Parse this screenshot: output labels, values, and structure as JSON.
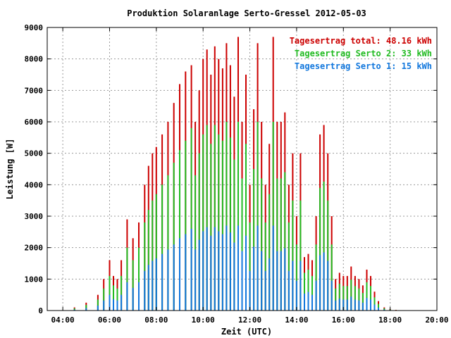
{
  "chart_data": {
    "type": "bar",
    "title": "Produktion Solaranlage Serto-Gressel 2012-05-03",
    "xlabel": "Zeit (UTC)",
    "ylabel": "Leistung [W]",
    "xlim": [
      "03:20",
      "20:00"
    ],
    "ylim": [
      0,
      9000
    ],
    "x_ticks": [
      "04:00",
      "06:00",
      "08:00",
      "10:00",
      "12:00",
      "14:00",
      "16:00",
      "18:00",
      "20:00"
    ],
    "y_ticks": [
      "0",
      "1000",
      "2000",
      "3000",
      "4000",
      "5000",
      "6000",
      "7000",
      "8000",
      "9000"
    ],
    "grid": true,
    "legend_position": "top-right",
    "colors": {
      "total": "#cc0000",
      "serto2": "#22bb22",
      "serto1": "#1177dd"
    },
    "legend": [
      {
        "key": "total",
        "label": "Tagesertrag total: 48.16 kWh"
      },
      {
        "key": "serto2",
        "label": "Tagesertrag Serto 2: 33 kWh"
      },
      {
        "key": "serto1",
        "label": "Tagesertrag Serto 1: 15 kWh"
      }
    ],
    "series": [
      {
        "key": "total",
        "x": [
          "04:30",
          "05:00",
          "05:30",
          "05:45",
          "06:00",
          "06:10",
          "06:20",
          "06:30",
          "06:45",
          "07:00",
          "07:15",
          "07:30",
          "07:40",
          "07:50",
          "08:00",
          "08:15",
          "08:30",
          "08:45",
          "09:00",
          "09:15",
          "09:30",
          "09:40",
          "09:50",
          "10:00",
          "10:10",
          "10:20",
          "10:30",
          "10:40",
          "10:50",
          "11:00",
          "11:10",
          "11:20",
          "11:30",
          "11:40",
          "11:50",
          "12:00",
          "12:10",
          "12:20",
          "12:30",
          "12:40",
          "12:50",
          "13:00",
          "13:10",
          "13:20",
          "13:30",
          "13:40",
          "13:50",
          "14:00",
          "14:10",
          "14:20",
          "14:30",
          "14:40",
          "14:50",
          "15:00",
          "15:10",
          "15:20",
          "15:30",
          "15:40",
          "15:50",
          "16:00",
          "16:10",
          "16:20",
          "16:30",
          "16:40",
          "16:50",
          "17:00",
          "17:10",
          "17:20",
          "17:30",
          "17:45",
          "18:00",
          "18:15",
          "18:30"
        ],
        "values": [
          100,
          250,
          500,
          1000,
          1600,
          1100,
          1000,
          1600,
          2900,
          2300,
          2800,
          4000,
          4600,
          5000,
          5200,
          5600,
          6000,
          6600,
          7200,
          7600,
          7800,
          6000,
          7000,
          8000,
          8300,
          7500,
          8400,
          8000,
          7700,
          8500,
          7800,
          6800,
          8700,
          6000,
          7500,
          4000,
          6400,
          8500,
          6000,
          4000,
          5300,
          8700,
          6000,
          6000,
          6300,
          4000,
          5000,
          3000,
          5000,
          1700,
          1800,
          1600,
          3000,
          5600,
          5900,
          5000,
          3000,
          1000,
          1200,
          1100,
          1100,
          1400,
          1100,
          1000,
          800,
          1300,
          1100,
          600,
          300,
          100,
          50,
          20,
          10
        ]
      },
      {
        "key": "serto2",
        "x": [
          "04:30",
          "05:00",
          "05:30",
          "05:45",
          "06:00",
          "06:10",
          "06:20",
          "06:30",
          "06:45",
          "07:00",
          "07:15",
          "07:30",
          "07:40",
          "07:50",
          "08:00",
          "08:15",
          "08:30",
          "08:45",
          "09:00",
          "09:15",
          "09:30",
          "09:40",
          "09:50",
          "10:00",
          "10:10",
          "10:20",
          "10:30",
          "10:40",
          "10:50",
          "11:00",
          "11:10",
          "11:20",
          "11:30",
          "11:40",
          "11:50",
          "12:00",
          "12:10",
          "12:20",
          "12:30",
          "12:40",
          "12:50",
          "13:00",
          "13:10",
          "13:20",
          "13:30",
          "13:40",
          "13:50",
          "14:00",
          "14:10",
          "14:20",
          "14:30",
          "14:40",
          "14:50",
          "15:00",
          "15:10",
          "15:20",
          "15:30",
          "15:40",
          "15:50",
          "16:00",
          "16:10",
          "16:20",
          "16:30",
          "16:40",
          "16:50",
          "17:00",
          "17:10",
          "17:20",
          "17:30",
          "17:45",
          "18:00",
          "18:15",
          "18:30"
        ],
        "values": [
          70,
          180,
          350,
          700,
          1100,
          800,
          700,
          1100,
          2000,
          1600,
          2000,
          2800,
          3200,
          3500,
          3700,
          4000,
          4300,
          4700,
          5100,
          5400,
          5800,
          4300,
          5000,
          5600,
          5900,
          5300,
          5900,
          5600,
          5400,
          6000,
          5500,
          4800,
          6000,
          4200,
          5300,
          2800,
          4500,
          6000,
          4200,
          2800,
          3700,
          6000,
          4200,
          4200,
          4400,
          2800,
          3500,
          2100,
          3500,
          1200,
          1300,
          1100,
          2100,
          3900,
          4100,
          3500,
          2100,
          700,
          850,
          780,
          780,
          980,
          780,
          700,
          560,
          900,
          780,
          420,
          210,
          70,
          35,
          14,
          7
        ]
      },
      {
        "key": "serto1",
        "x": [
          "04:30",
          "05:00",
          "05:30",
          "05:45",
          "06:00",
          "06:10",
          "06:20",
          "06:30",
          "06:45",
          "07:00",
          "07:15",
          "07:30",
          "07:40",
          "07:50",
          "08:00",
          "08:15",
          "08:30",
          "08:45",
          "09:00",
          "09:15",
          "09:30",
          "09:40",
          "09:50",
          "10:00",
          "10:10",
          "10:20",
          "10:30",
          "10:40",
          "10:50",
          "11:00",
          "11:10",
          "11:20",
          "11:30",
          "11:40",
          "11:50",
          "12:00",
          "12:10",
          "12:20",
          "12:30",
          "12:40",
          "12:50",
          "13:00",
          "13:10",
          "13:20",
          "13:30",
          "13:40",
          "13:50",
          "14:00",
          "14:10",
          "14:20",
          "14:30",
          "14:40",
          "14:50",
          "15:00",
          "15:10",
          "15:20",
          "15:30",
          "15:40",
          "15:50",
          "16:00",
          "16:10",
          "16:20",
          "16:30",
          "16:40",
          "16:50",
          "17:00",
          "17:10",
          "17:20",
          "17:30",
          "17:45",
          "18:00",
          "18:15",
          "18:30"
        ],
        "values": [
          30,
          80,
          160,
          320,
          500,
          360,
          320,
          500,
          900,
          720,
          900,
          1260,
          1450,
          1580,
          1660,
          1800,
          1940,
          2100,
          2300,
          2430,
          2600,
          1940,
          2250,
          2520,
          2650,
          2380,
          2650,
          2520,
          2430,
          2700,
          2480,
          2160,
          2700,
          1890,
          2380,
          1260,
          2030,
          2700,
          1890,
          1260,
          1660,
          2700,
          1890,
          1890,
          1980,
          1260,
          1580,
          950,
          1580,
          540,
          590,
          500,
          950,
          1760,
          1850,
          1580,
          950,
          320,
          380,
          350,
          350,
          440,
          350,
          320,
          250,
          400,
          350,
          190,
          95,
          32,
          16,
          6,
          3
        ]
      }
    ]
  }
}
